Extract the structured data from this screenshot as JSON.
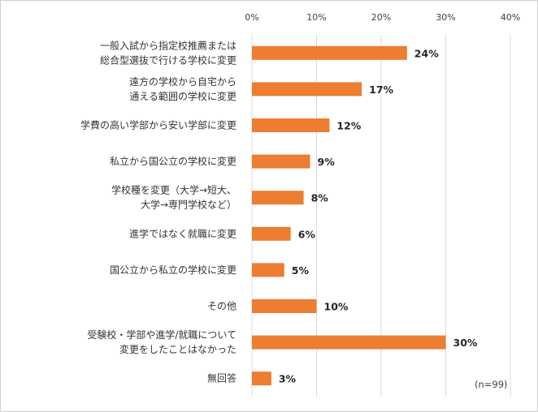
{
  "chart_data": {
    "type": "bar",
    "orientation": "horizontal",
    "categories": [
      [
        "一般入試から指定校推薦または",
        "総合型選抜で行ける学校に変更"
      ],
      [
        "遠方の学校から自宅から",
        "通える範囲の学校に変更"
      ],
      [
        "学費の高い学部から安い学部に変更"
      ],
      [
        "私立から国公立の学校に変更"
      ],
      [
        "学校種を変更（大学→短大、",
        "大学→専門学校など）"
      ],
      [
        "進学ではなく就職に変更"
      ],
      [
        "国公立から私立の学校に変更"
      ],
      [
        "その他"
      ],
      [
        "受験校・学部や進学/就職について",
        "変更をしたことはなかった"
      ],
      [
        "無回答"
      ]
    ],
    "values": [
      24,
      17,
      12,
      9,
      8,
      6,
      5,
      10,
      30,
      3
    ],
    "value_labels": [
      "24%",
      "17%",
      "12%",
      "9%",
      "8%",
      "6%",
      "5%",
      "10%",
      "30%",
      "3%"
    ],
    "xlim": [
      0,
      40
    ],
    "ticks": [
      "0%",
      "10%",
      "20%",
      "30%",
      "40%"
    ],
    "tick_values": [
      0,
      10,
      20,
      30,
      40
    ],
    "grid": true,
    "bar_color": "#ED7D31",
    "grid_color": "#d9d9d9",
    "note": "(n=99)"
  }
}
